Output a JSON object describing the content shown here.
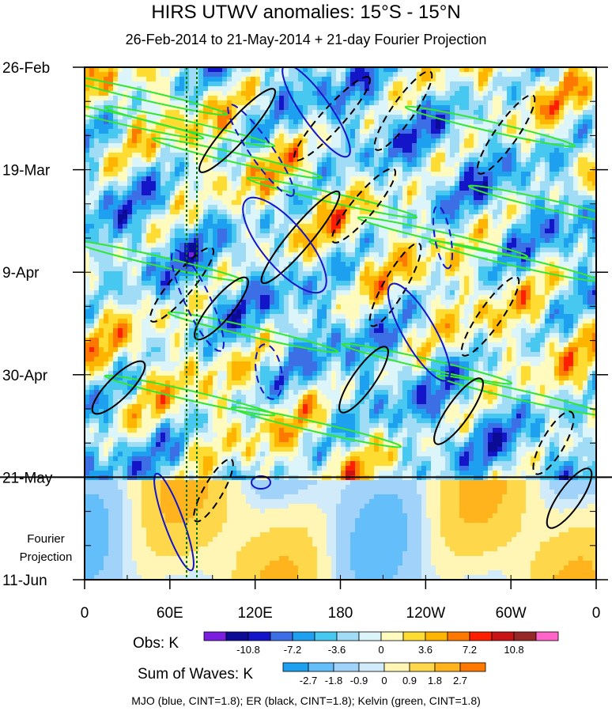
{
  "title": "HIRS UTWV anomalies: 15°S - 15°N",
  "subtitle": "26-Feb-2014 to 21-May-2014 + 21-day Fourier Projection",
  "colors": {
    "obs": [
      "#7a1fe0",
      "#0b0b96",
      "#1414c8",
      "#3c6ee6",
      "#1ea0f0",
      "#46c8f0",
      "#a0dcf5",
      "#dcf5fa",
      "#fffabe",
      "#ffdc32",
      "#ffb400",
      "#ff7800",
      "#ff1e00",
      "#c81414",
      "#962828",
      "#ff64c8"
    ],
    "waves": [
      "#1ea0f0",
      "#64befa",
      "#a0d2fa",
      "#d2ebfa",
      "#fff5b4",
      "#ffd74b",
      "#ffb41e",
      "#ff7800"
    ],
    "mjo": "#1414c8",
    "er": "#000000",
    "kelvin": "#32e632",
    "dotted": "#007800"
  },
  "chart_data": {
    "type": "heatmap",
    "title": "HIRS UTWV anomalies: 15°S - 15°N",
    "subtitle": "26-Feb-2014 to 21-May-2014 + 21-day Fourier Projection",
    "xlabel": "",
    "ylabel": "",
    "x_ticks": [
      "0",
      "60E",
      "120E",
      "180",
      "120W",
      "60W",
      "0"
    ],
    "x_range_deg_east": [
      0,
      360
    ],
    "y_ticks": [
      "26-Feb",
      "19-Mar",
      "9-Apr",
      "30-Apr",
      "21-May",
      "11-Jun"
    ],
    "y_range_days_since_26feb": [
      0,
      105
    ],
    "projection_start": "21-May",
    "projection_label": "Fourier Projection",
    "obs_colorbar": {
      "label": "Obs: K",
      "levels": [
        "-10.8",
        "-7.2",
        "-3.6",
        "0",
        "3.6",
        "7.2",
        "10.8"
      ]
    },
    "waves_colorbar": {
      "label": "Sum of Waves: K",
      "levels": [
        "-2.7",
        "-1.8",
        "-0.9",
        "0",
        "0.9",
        "1.8",
        "2.7"
      ]
    },
    "contours": [
      {
        "name": "MJO",
        "color": "blue",
        "cint": 1.8
      },
      {
        "name": "ER",
        "color": "black",
        "cint": 1.8
      },
      {
        "name": "Kelvin",
        "color": "green",
        "cint": 1.8
      }
    ],
    "footnote": "MJO (blue, CINT=1.8); ER (black, CINT=1.8); Kelvin (green, CINT=1.8)"
  }
}
